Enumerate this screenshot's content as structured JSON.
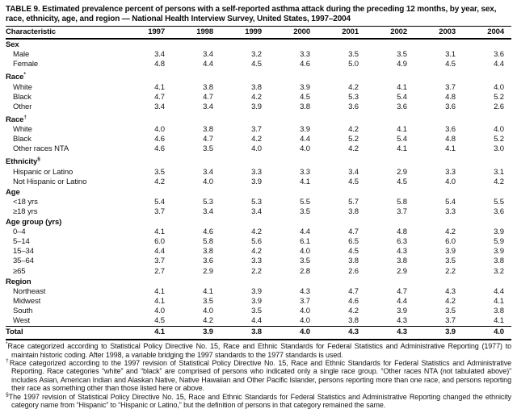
{
  "table": {
    "title": "TABLE 9. Estimated prevalence percent of persons with a self-reported asthma attack during the preceding 12 months, by year, sex, race, ethnicity, age, and region — National Health Interview Survey, United States, 1997–2004",
    "columns": [
      "Characteristic",
      "1997",
      "1998",
      "1999",
      "2000",
      "2001",
      "2002",
      "2003",
      "2004"
    ],
    "sections": [
      {
        "label": "Sex",
        "marker": "",
        "rows": [
          {
            "label": "Male",
            "values": [
              "3.4",
              "3.4",
              "3.2",
              "3.3",
              "3.5",
              "3.5",
              "3.1",
              "3.6"
            ]
          },
          {
            "label": "Female",
            "values": [
              "4.8",
              "4.4",
              "4.5",
              "4.6",
              "5.0",
              "4.9",
              "4.5",
              "4.4"
            ]
          }
        ]
      },
      {
        "label": "Race",
        "marker": "*",
        "rows": [
          {
            "label": "White",
            "values": [
              "4.1",
              "3.8",
              "3.8",
              "3.9",
              "4.2",
              "4.1",
              "3.7",
              "4.0"
            ]
          },
          {
            "label": "Black",
            "values": [
              "4.7",
              "4.7",
              "4.2",
              "4.5",
              "5.3",
              "5.4",
              "4.8",
              "5.2"
            ]
          },
          {
            "label": "Other",
            "values": [
              "3.4",
              "3.4",
              "3.9",
              "3.8",
              "3.6",
              "3.6",
              "3.6",
              "2.6"
            ]
          }
        ]
      },
      {
        "label": "Race",
        "marker": "†",
        "rows": [
          {
            "label": "White",
            "values": [
              "4.0",
              "3.8",
              "3.7",
              "3.9",
              "4.2",
              "4.1",
              "3.6",
              "4.0"
            ]
          },
          {
            "label": "Black",
            "values": [
              "4.6",
              "4.7",
              "4.2",
              "4.4",
              "5.2",
              "5.4",
              "4.8",
              "5.2"
            ]
          },
          {
            "label": "Other races NTA",
            "values": [
              "4.6",
              "3.5",
              "4.0",
              "4.0",
              "4.2",
              "4.1",
              "4.1",
              "3.0"
            ]
          }
        ]
      },
      {
        "label": "Ethnicity",
        "marker": "§",
        "rows": [
          {
            "label": "Hispanic or Latino",
            "values": [
              "3.5",
              "3.4",
              "3.3",
              "3.3",
              "3.4",
              "2.9",
              "3.3",
              "3.1"
            ]
          },
          {
            "label": "Not Hispanic or Latino",
            "values": [
              "4.2",
              "4.0",
              "3.9",
              "4.1",
              "4.5",
              "4.5",
              "4.0",
              "4.2"
            ]
          }
        ]
      },
      {
        "label": "Age",
        "marker": "",
        "rows": [
          {
            "label": "<18 yrs",
            "values": [
              "5.4",
              "5.3",
              "5.3",
              "5.5",
              "5.7",
              "5.8",
              "5.4",
              "5.5"
            ]
          },
          {
            "label": "≥18 yrs",
            "values": [
              "3.7",
              "3.4",
              "3.4",
              "3.5",
              "3.8",
              "3.7",
              "3.3",
              "3.6"
            ]
          }
        ]
      },
      {
        "label": "Age group (yrs)",
        "marker": "",
        "rows": [
          {
            "label": "0–4",
            "values": [
              "4.1",
              "4.6",
              "4.2",
              "4.4",
              "4.7",
              "4.8",
              "4.2",
              "3.9"
            ]
          },
          {
            "label": "5–14",
            "values": [
              "6.0",
              "5.8",
              "5.6",
              "6.1",
              "6.5",
              "6.3",
              "6.0",
              "5.9"
            ]
          },
          {
            "label": "15–34",
            "values": [
              "4.4",
              "3.8",
              "4.2",
              "4.0",
              "4.5",
              "4.3",
              "3.9",
              "3.9"
            ]
          },
          {
            "label": "35–64",
            "values": [
              "3.7",
              "3.6",
              "3.3",
              "3.5",
              "3.8",
              "3.8",
              "3.5",
              "3.8"
            ]
          },
          {
            "label": "≥65",
            "values": [
              "2.7",
              "2.9",
              "2.2",
              "2.8",
              "2.6",
              "2.9",
              "2.2",
              "3.2"
            ]
          }
        ]
      },
      {
        "label": "Region",
        "marker": "",
        "rows": [
          {
            "label": "Northeast",
            "values": [
              "4.1",
              "4.1",
              "3.9",
              "4.3",
              "4.7",
              "4.7",
              "4.3",
              "4.4"
            ]
          },
          {
            "label": "Midwest",
            "values": [
              "4.1",
              "3.5",
              "3.9",
              "3.7",
              "4.6",
              "4.4",
              "4.2",
              "4.1"
            ]
          },
          {
            "label": "South",
            "values": [
              "4.0",
              "4.0",
              "3.5",
              "4.0",
              "4.2",
              "3.9",
              "3.5",
              "3.8"
            ]
          },
          {
            "label": "West",
            "values": [
              "4.5",
              "4.2",
              "4.4",
              "4.0",
              "3.8",
              "4.3",
              "3.7",
              "4.1"
            ]
          }
        ]
      }
    ],
    "total_row": {
      "label": "Total",
      "values": [
        "4.1",
        "3.9",
        "3.8",
        "4.0",
        "4.3",
        "4.3",
        "3.9",
        "4.0"
      ]
    },
    "footnotes": [
      {
        "marker": "*",
        "text": "Race categorized according to Statistical Policy Directive No. 15, Race and Ethnic Standards for Federal Statistics and Administrative Reporting (1977) to maintain historic coding. After 1998, a variable bridging the 1997 standards to the 1977 standards is used."
      },
      {
        "marker": "†",
        "text": "Race categorized according to the 1997 revision of Statistical Policy Directive No. 15, Race and Ethnic Standards for Federal Statistics and Administrative Reporting. Race categories “white” and “black” are comprised of persons who indicated only a single race group. “Other races NTA (not tabulated above)” includes Asian, American Indian and Alaskan Native, Native Hawaiian and Other Pacific Islander, persons reporting more than one race, and persons reporting their race as something other than those listed here or above."
      },
      {
        "marker": "§",
        "text": "The 1997 revision of Statistical Policy Directive No. 15, Race and Ethnic Standards for Federal Statistics and Administrative Reporting changed the ethnicity category name from “Hispanic” to “Hispanic or Latino,” but the definition of persons in that category remained the same."
      }
    ]
  }
}
